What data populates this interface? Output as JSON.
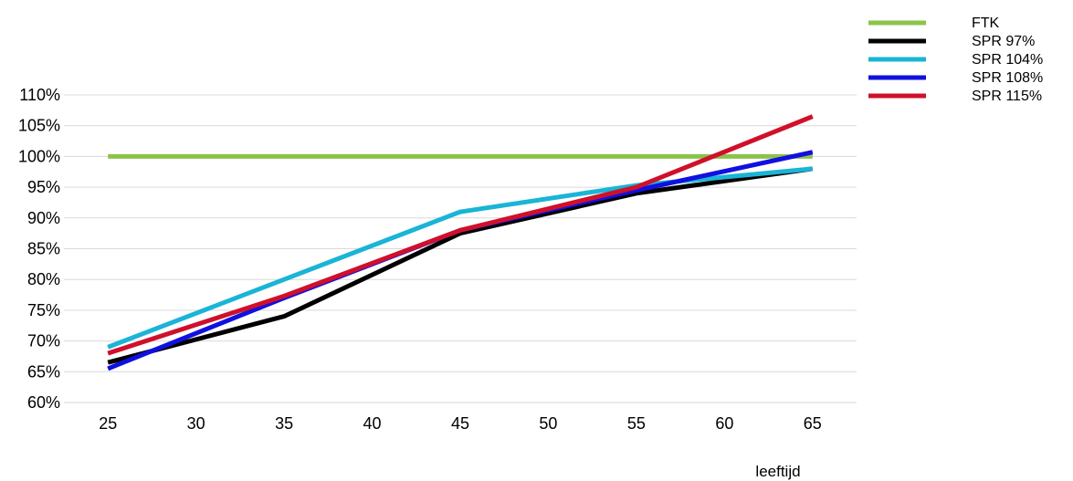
{
  "chart_data": {
    "type": "line",
    "title": "",
    "xlabel": "leeftijd",
    "ylabel": "",
    "x": [
      25,
      35,
      45,
      55,
      65
    ],
    "xticks": [
      25,
      30,
      35,
      40,
      45,
      50,
      55,
      60,
      65
    ],
    "xlim": [
      22.5,
      67.5
    ],
    "ylim": [
      60,
      110
    ],
    "yticks": [
      60,
      65,
      70,
      75,
      80,
      85,
      90,
      95,
      100,
      105,
      110
    ],
    "ytick_suffix": "%",
    "grid": "horizontal",
    "legend_position": "top-right",
    "series": [
      {
        "name": "FTK",
        "color": "#8bc34a",
        "values": [
          100,
          100,
          100,
          100,
          100
        ]
      },
      {
        "name": "SPR 97%",
        "color": "#000000",
        "values": [
          66.5,
          74,
          87.5,
          94,
          98
        ]
      },
      {
        "name": "SPR 104%",
        "color": "#1ab4d6",
        "values": [
          69,
          80,
          91,
          95.3,
          98
        ]
      },
      {
        "name": "SPR 108%",
        "color": "#1010e0",
        "values": [
          65.5,
          77,
          88,
          94.5,
          100.7
        ]
      },
      {
        "name": "SPR 115%",
        "color": "#d0102a",
        "values": [
          68,
          77.3,
          88,
          95,
          106.5
        ]
      }
    ]
  }
}
